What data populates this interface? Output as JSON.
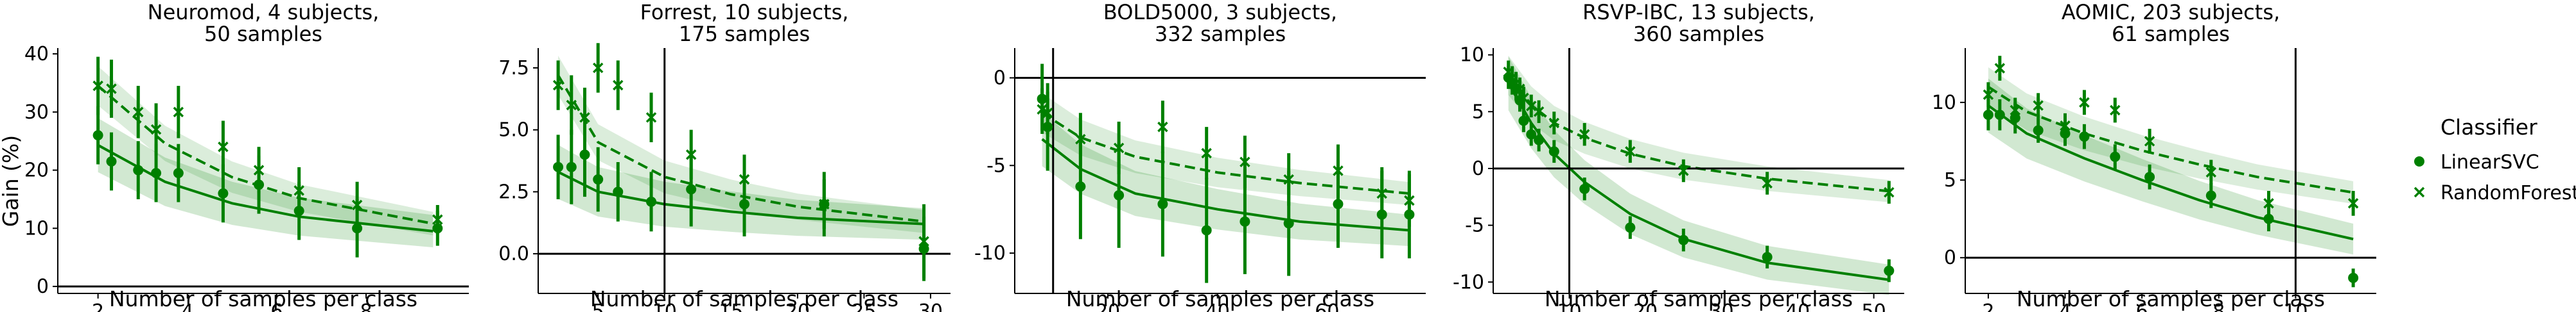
{
  "legend": {
    "title": "Classifier",
    "entries": [
      {
        "label": "LinearSVC",
        "marker": "circle",
        "line": "solid"
      },
      {
        "label": "RandomForest",
        "marker": "x",
        "line": "dashed"
      }
    ]
  },
  "colors": {
    "series": "#008000",
    "band": "#008000",
    "axes": "#000000"
  },
  "chart_data": [
    {
      "type": "scatter",
      "title": "Neuromod, 4 subjects,\n50 samples",
      "title_lines": [
        "Neuromod, 4 subjects,",
        "50 samples"
      ],
      "xlabel": "Number of samples per class",
      "ylabel": "Gain (%)",
      "xlim": [
        1.1,
        10.3
      ],
      "ylim": [
        -1.2,
        41
      ],
      "xticks": [
        2,
        4,
        6,
        8
      ],
      "yticks": [
        0,
        10,
        20,
        30,
        40
      ],
      "hline": 0,
      "vline": null,
      "series": [
        {
          "name": "LinearSVC",
          "x": [
            2,
            2.3,
            2.9,
            3.3,
            3.8,
            4.8,
            5.6,
            6.5,
            7.8,
            9.6
          ],
          "y": [
            26,
            21.5,
            20,
            19.5,
            19.5,
            16,
            17.5,
            13,
            10,
            10
          ],
          "err": [
            5,
            5,
            5,
            5,
            5,
            5,
            5,
            5,
            5,
            3
          ],
          "fit": [
            24.3,
            18.0,
            14.3,
            12.0,
            9.5
          ],
          "fit_x": [
            2,
            3.5,
            5,
            6.5,
            9.5
          ]
        },
        {
          "name": "RandomForest",
          "x": [
            2,
            2.3,
            2.9,
            3.3,
            3.8,
            4.8,
            5.6,
            6.5,
            7.8,
            9.6
          ],
          "y": [
            34.5,
            34,
            30,
            27,
            30,
            24,
            20,
            16.5,
            14,
            11.5
          ],
          "err": [
            5,
            5,
            4.5,
            4.5,
            4.5,
            4.5,
            4,
            4,
            4,
            2.5
          ],
          "fit": [
            34.5,
            24.6,
            18.8,
            15.2,
            10.8
          ],
          "fit_x": [
            2,
            3.5,
            5,
            6.5,
            9.5
          ]
        }
      ]
    },
    {
      "type": "scatter",
      "title": "Forrest, 10 subjects,\n175 samples",
      "title_lines": [
        "Forrest, 10 subjects,",
        "175 samples"
      ],
      "xlabel": "Number of samples per class",
      "ylabel": "",
      "xlim": [
        0.5,
        31.5
      ],
      "ylim": [
        -1.6,
        8.3
      ],
      "xticks": [
        5,
        10,
        15,
        20,
        25,
        30
      ],
      "yticks": [
        0,
        2.5,
        5,
        7.5
      ],
      "ytick_labels": [
        "0.0",
        "2.5",
        "5.0",
        "7.5"
      ],
      "hline": 0,
      "vline": 10,
      "series": [
        {
          "name": "LinearSVC",
          "x": [
            2,
            3,
            4,
            5,
            6.5,
            9,
            12,
            16,
            22,
            29.5
          ],
          "y": [
            3.5,
            3.5,
            4,
            3,
            2.5,
            2.1,
            2.6,
            2,
            2,
            0.2
          ],
          "err": [
            1.3,
            1.5,
            1.7,
            1.3,
            1.2,
            1.2,
            1.5,
            1.3,
            1.3,
            1.3
          ],
          "fit": [
            3.3,
            2.5,
            2.0,
            1.7,
            1.45,
            1.2
          ],
          "fit_x": [
            2,
            5,
            10,
            15,
            20,
            29.5
          ]
        },
        {
          "name": "RandomForest",
          "x": [
            2,
            3,
            4,
            5,
            6.5,
            9,
            12,
            16,
            22,
            29.5
          ],
          "y": [
            6.8,
            6,
            5.5,
            7.5,
            6.8,
            5.5,
            4,
            3,
            2,
            0.5
          ],
          "err": [
            1,
            1.2,
            1.2,
            1,
            1,
            1,
            1,
            1,
            1,
            1.5
          ],
          "fit": [
            7.2,
            4.5,
            3.1,
            2.4,
            1.9,
            1.3
          ],
          "fit_x": [
            2,
            5,
            10,
            15,
            20,
            29.5
          ]
        }
      ]
    },
    {
      "type": "scatter",
      "title": "BOLD5000, 3 subjects,\n332 samples",
      "title_lines": [
        "BOLD5000, 3 subjects,",
        "332 samples"
      ],
      "xlabel": "Number of samples per class",
      "ylabel": "",
      "xlim": [
        3,
        78
      ],
      "ylim": [
        -12.3,
        1.7
      ],
      "xticks": [
        20,
        40,
        60
      ],
      "yticks": [
        0,
        -5,
        -10
      ],
      "hline": 0,
      "vline": 10,
      "series": [
        {
          "name": "LinearSVC",
          "x": [
            8,
            9,
            15,
            22,
            30,
            38,
            45,
            53,
            62,
            70,
            75
          ],
          "y": [
            -1.2,
            -2.8,
            -6.2,
            -6.7,
            -7.2,
            -8.7,
            -8.2,
            -8.3,
            -7.2,
            -7.8,
            -7.8
          ],
          "err": [
            2,
            2.5,
            3,
            3,
            3,
            3,
            3,
            3,
            2.5,
            2.5,
            2.5
          ],
          "fit": [
            -3.5,
            -5.2,
            -6.6,
            -7.5,
            -8.2,
            -8.7
          ],
          "fit_x": [
            8,
            15,
            25,
            40,
            55,
            75
          ]
        },
        {
          "name": "RandomForest",
          "x": [
            8,
            9,
            15,
            22,
            30,
            38,
            45,
            53,
            62,
            70,
            75
          ],
          "y": [
            -1.8,
            -2,
            -3.5,
            -4,
            -2.8,
            -4.3,
            -4.8,
            -5.8,
            -5.3,
            -6.6,
            -7
          ],
          "err": [
            1.2,
            1.2,
            1.5,
            1.5,
            1.5,
            1.5,
            1.5,
            1.5,
            1.5,
            1.5,
            1.5
          ],
          "fit": [
            -2.0,
            -3.4,
            -4.5,
            -5.4,
            -6.0,
            -6.6
          ],
          "fit_x": [
            8,
            15,
            25,
            40,
            55,
            75
          ]
        }
      ]
    },
    {
      "type": "scatter",
      "title": "RSVP-IBC, 13 subjects,\n360 samples",
      "title_lines": [
        "RSVP-IBC, 13 subjects,",
        "360 samples"
      ],
      "xlabel": "Number of samples per class",
      "ylabel": "",
      "xlim": [
        0,
        54
      ],
      "ylim": [
        -11,
        10.6
      ],
      "xticks": [
        10,
        20,
        30,
        40,
        50
      ],
      "yticks": [
        10,
        5,
        0,
        -5,
        -10
      ],
      "hline": 0,
      "vline": 10,
      "series": [
        {
          "name": "LinearSVC",
          "x": [
            2,
            2.5,
            3,
            3.5,
            4,
            5,
            6,
            8,
            12,
            18,
            25,
            36,
            52
          ],
          "y": [
            8,
            7.5,
            7,
            6,
            4.2,
            3,
            2.5,
            1.5,
            -1.8,
            -5.2,
            -6.3,
            -7.8,
            -9
          ],
          "err": [
            1,
            1,
            1,
            1,
            1,
            1,
            1,
            1,
            1,
            1,
            1,
            1,
            1
          ],
          "fit": [
            7.5,
            4.0,
            1.3,
            -1.2,
            -4.0,
            -6.2,
            -8.3,
            -9.8
          ],
          "fit_x": [
            2,
            5,
            8,
            12,
            18,
            25,
            36,
            52
          ]
        },
        {
          "name": "RandomForest",
          "x": [
            2,
            2.5,
            3,
            3.5,
            4,
            5,
            6,
            8,
            12,
            18,
            25,
            36,
            52
          ],
          "y": [
            8.5,
            8,
            7.5,
            7,
            6.2,
            5.5,
            5,
            4,
            3,
            1.5,
            -0.2,
            -1.3,
            -2.1
          ],
          "err": [
            1,
            1,
            1,
            1,
            1,
            1,
            1,
            1,
            1,
            1,
            1,
            1,
            1
          ],
          "fit": [
            8.2,
            5.6,
            4.0,
            2.7,
            1.3,
            0.2,
            -0.9,
            -2.0
          ],
          "fit_x": [
            2,
            5,
            8,
            12,
            18,
            25,
            36,
            52
          ]
        }
      ]
    },
    {
      "type": "scatter",
      "title": "AOMIC, 203 subjects,\n61 samples",
      "title_lines": [
        "AOMIC, 203 subjects,",
        "61 samples"
      ],
      "xlabel": "Number of samples per class",
      "ylabel": "",
      "xlim": [
        1.4,
        12.1
      ],
      "ylim": [
        -2.3,
        13.5
      ],
      "xticks": [
        2,
        4,
        6,
        8,
        10
      ],
      "yticks": [
        0,
        5,
        10
      ],
      "hline": 0,
      "vline": 10,
      "series": [
        {
          "name": "LinearSVC",
          "x": [
            2,
            2.3,
            2.7,
            3.3,
            4,
            4.5,
            5.3,
            6.2,
            7.8,
            9.3,
            11.5
          ],
          "y": [
            9.2,
            9.2,
            9,
            8.2,
            8,
            7.8,
            6.5,
            5.2,
            4,
            2.5,
            -1.3
          ],
          "err": [
            1,
            1,
            1,
            0.8,
            0.8,
            0.8,
            0.8,
            0.8,
            0.8,
            0.8,
            0.6
          ],
          "fit": [
            9.8,
            8.0,
            6.4,
            5.0,
            3.7,
            2.6,
            1.2
          ],
          "fit_x": [
            2,
            3,
            4.5,
            6,
            7.5,
            9,
            11.5
          ]
        },
        {
          "name": "RandomForest",
          "x": [
            2,
            2.3,
            2.7,
            3.3,
            4,
            4.5,
            5.3,
            6.2,
            7.8,
            9.3,
            11.5
          ],
          "y": [
            10.5,
            12.2,
            9.5,
            9.8,
            8.5,
            10,
            9.5,
            7.5,
            5.5,
            3.5,
            3.5
          ],
          "err": [
            0.8,
            0.8,
            0.8,
            0.8,
            0.8,
            0.8,
            0.8,
            0.8,
            0.8,
            0.8,
            0.8
          ],
          "fit": [
            11.0,
            9.4,
            8.0,
            6.9,
            6.0,
            5.2,
            4.2
          ],
          "fit_x": [
            2,
            3,
            4.5,
            6,
            7.5,
            9,
            11.5
          ]
        }
      ]
    }
  ]
}
